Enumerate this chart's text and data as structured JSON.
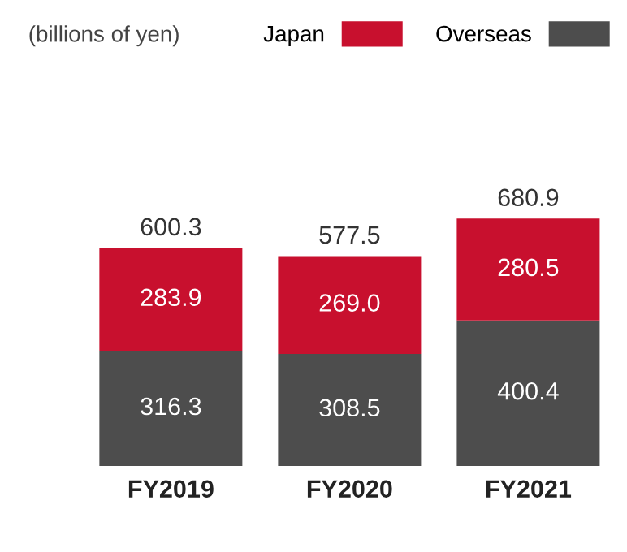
{
  "chart_data": {
    "type": "bar",
    "stacked": true,
    "categories": [
      "FY2019",
      "FY2020",
      "FY2021"
    ],
    "series": [
      {
        "name": "Overseas",
        "color": "#4d4d4d",
        "values": [
          316.3,
          308.5,
          400.4
        ],
        "value_labels": [
          "316.3",
          "308.5",
          "400.4"
        ]
      },
      {
        "name": "Japan",
        "color": "#c8102e",
        "values": [
          283.9,
          269.0,
          280.5
        ],
        "value_labels": [
          "283.9",
          "269.0",
          "280.5"
        ]
      }
    ],
    "totals": [
      "600.3",
      "577.5",
      "680.9"
    ],
    "annotations": [
      "(billions of yen)"
    ],
    "legend": "top right",
    "grid": false
  }
}
